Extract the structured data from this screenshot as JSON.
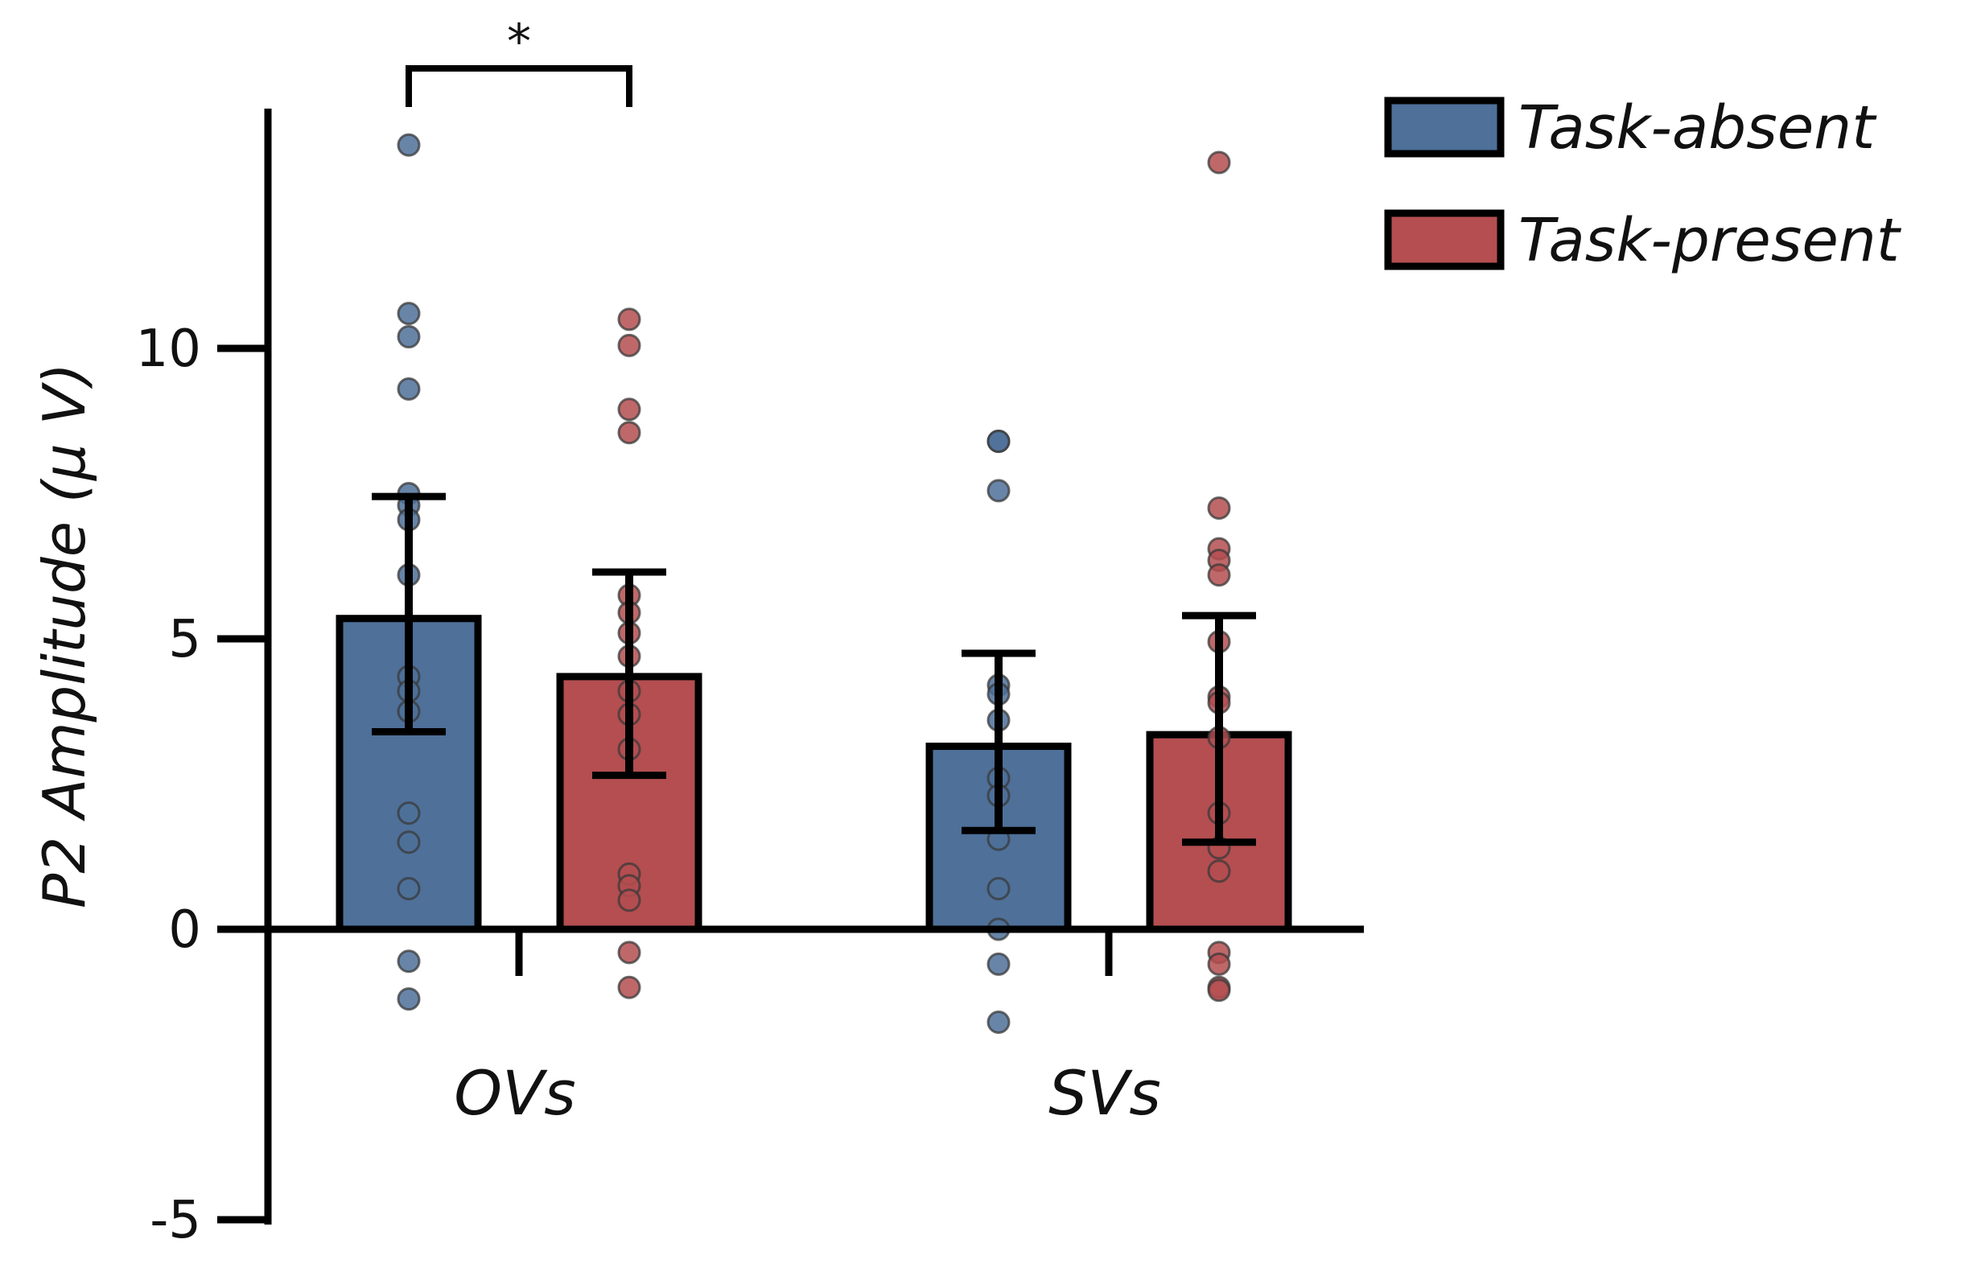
{
  "chart_data": {
    "type": "bar",
    "title": "",
    "xlabel": "",
    "ylabel": "P2 Amplitude (μ V)",
    "ylim": [
      -5,
      14
    ],
    "yticks": [
      -5,
      0,
      5,
      10
    ],
    "ytick_labels": [
      "-5",
      "0",
      "5",
      "10"
    ],
    "categories": [
      "OVs",
      "SVs"
    ],
    "grid": false,
    "legend_position": "top-right",
    "series": [
      {
        "name": "Task-absent",
        "color": "#4e7099",
        "values": [
          5.35,
          3.15
        ],
        "error_low": [
          3.4,
          1.7
        ],
        "error_high": [
          7.45,
          4.75
        ],
        "points": [
          [
            13.5,
            10.6,
            10.2,
            9.3,
            7.5,
            7.3,
            7.05,
            6.1,
            4.35,
            4.1,
            3.75,
            2.0,
            1.5,
            0.7,
            -0.55,
            -1.2
          ],
          [
            8.4,
            8.4,
            7.55,
            4.2,
            4.05,
            3.6,
            2.6,
            2.3,
            1.55,
            0.7,
            0.0,
            -0.6,
            -1.6
          ]
        ]
      },
      {
        "name": "Task-present",
        "color": "#b44e50",
        "values": [
          4.35,
          3.35
        ],
        "error_low": [
          2.65,
          1.5
        ],
        "error_high": [
          6.15,
          5.4
        ],
        "points": [
          [
            10.5,
            10.05,
            8.95,
            8.55,
            5.75,
            5.45,
            5.1,
            4.7,
            4.1,
            3.7,
            3.1,
            0.95,
            0.75,
            0.5,
            -0.4,
            -1.0
          ],
          [
            13.2,
            7.25,
            6.55,
            6.35,
            6.1,
            4.95,
            4.0,
            3.9,
            3.3,
            2.0,
            1.4,
            1.0,
            -0.4,
            -0.6,
            -1.0,
            -1.05
          ]
        ]
      }
    ],
    "annotations": [
      {
        "text": "*",
        "between": [
          "OVs Task-absent",
          "OVs Task-present"
        ]
      }
    ]
  }
}
